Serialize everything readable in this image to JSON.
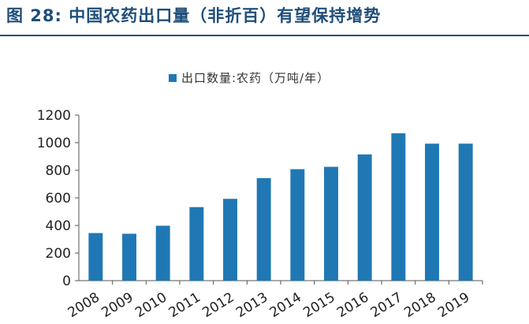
{
  "figure_title": "图 28:  中国农药出口量（非折百）有望保持增势",
  "accent_color": "#1f4e79",
  "bar_color": "#1f78b4",
  "chart_data": {
    "type": "bar",
    "title": "",
    "xlabel": "",
    "ylabel": "",
    "categories": [
      "2008",
      "2009",
      "2010",
      "2011",
      "2012",
      "2013",
      "2014",
      "2015",
      "2016",
      "2017",
      "2018",
      "2019"
    ],
    "series": [
      {
        "name": "出口数量:农药（万吨/年）",
        "values": [
          345,
          340,
          398,
          533,
          593,
          743,
          808,
          825,
          915,
          1068,
          993,
          993
        ]
      }
    ],
    "ylim": [
      0,
      1200
    ],
    "yticks": [
      0,
      200,
      400,
      600,
      800,
      1000,
      1200
    ],
    "grid": false,
    "legend_position": "top-center"
  }
}
